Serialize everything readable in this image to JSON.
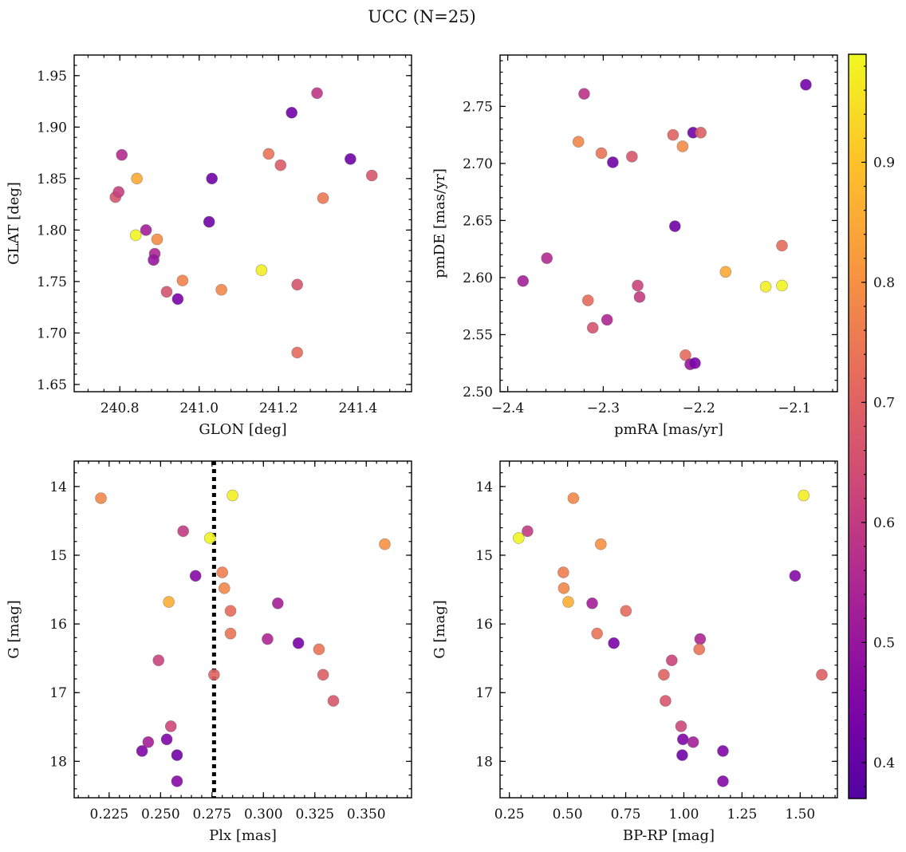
{
  "figure": {
    "title": "UCC (N=25)"
  },
  "colorbar": {
    "range": [
      0.37,
      0.99
    ],
    "ticks": [
      0.4,
      0.5,
      0.6,
      0.7,
      0.8,
      0.9
    ],
    "tick_labels": [
      "0.4",
      "0.5",
      "0.6",
      "0.7",
      "0.8",
      "0.9"
    ],
    "colormap": "plasma"
  },
  "chart_data": [
    {
      "type": "scatter",
      "id": "glon-glat",
      "xlabel": "GLON [deg]",
      "ylabel": "GLAT [deg]",
      "xlim": [
        240.685,
        241.535
      ],
      "ylim": [
        1.643,
        1.97
      ],
      "xticks": [
        240.8,
        241.0,
        241.2,
        241.4
      ],
      "xtick_labels": [
        "240.8",
        "241.0",
        "241.2",
        "241.4"
      ],
      "yticks": [
        1.65,
        1.7,
        1.75,
        1.8,
        1.85,
        1.9,
        1.95
      ],
      "ytick_labels": [
        "1.65",
        "1.70",
        "1.75",
        "1.80",
        "1.85",
        "1.90",
        "1.95"
      ],
      "points": [
        {
          "x": 240.805,
          "y": 1.873,
          "c": 0.56
        },
        {
          "x": 240.789,
          "y": 1.832,
          "c": 0.66
        },
        {
          "x": 240.797,
          "y": 1.837,
          "c": 0.61
        },
        {
          "x": 240.843,
          "y": 1.85,
          "c": 0.85
        },
        {
          "x": 240.84,
          "y": 1.795,
          "c": 0.98
        },
        {
          "x": 240.866,
          "y": 1.8,
          "c": 0.53
        },
        {
          "x": 240.888,
          "y": 1.777,
          "c": 0.55
        },
        {
          "x": 240.885,
          "y": 1.771,
          "c": 0.5
        },
        {
          "x": 240.894,
          "y": 1.791,
          "c": 0.79
        },
        {
          "x": 240.918,
          "y": 1.74,
          "c": 0.66
        },
        {
          "x": 240.946,
          "y": 1.733,
          "c": 0.44
        },
        {
          "x": 240.958,
          "y": 1.751,
          "c": 0.77
        },
        {
          "x": 241.025,
          "y": 1.808,
          "c": 0.42
        },
        {
          "x": 241.032,
          "y": 1.85,
          "c": 0.42
        },
        {
          "x": 241.056,
          "y": 1.742,
          "c": 0.78
        },
        {
          "x": 241.157,
          "y": 1.761,
          "c": 0.97
        },
        {
          "x": 241.175,
          "y": 1.874,
          "c": 0.74
        },
        {
          "x": 241.205,
          "y": 1.863,
          "c": 0.68
        },
        {
          "x": 241.233,
          "y": 1.914,
          "c": 0.42
        },
        {
          "x": 241.247,
          "y": 1.747,
          "c": 0.66
        },
        {
          "x": 241.247,
          "y": 1.681,
          "c": 0.72
        },
        {
          "x": 241.297,
          "y": 1.933,
          "c": 0.59
        },
        {
          "x": 241.312,
          "y": 1.831,
          "c": 0.75
        },
        {
          "x": 241.381,
          "y": 1.869,
          "c": 0.42
        },
        {
          "x": 241.435,
          "y": 1.853,
          "c": 0.67
        }
      ]
    },
    {
      "type": "scatter",
      "id": "pmra-pmde",
      "xlabel": "pmRA [mas/yr]",
      "ylabel": "pmDE [mas/yr]",
      "xlim": [
        -2.408,
        -2.055
      ],
      "ylim": [
        2.5,
        2.795
      ],
      "xticks": [
        -2.4,
        -2.3,
        -2.2,
        -2.1
      ],
      "xtick_labels": [
        "−2.4",
        "−2.3",
        "−2.2",
        "−2.1"
      ],
      "yticks": [
        2.5,
        2.55,
        2.6,
        2.65,
        2.7,
        2.75
      ],
      "ytick_labels": [
        "2.50",
        "2.55",
        "2.60",
        "2.65",
        "2.70",
        "2.75"
      ],
      "points": [
        {
          "x": -2.384,
          "y": 2.597,
          "c": 0.53
        },
        {
          "x": -2.359,
          "y": 2.617,
          "c": 0.56
        },
        {
          "x": -2.326,
          "y": 2.719,
          "c": 0.78
        },
        {
          "x": -2.32,
          "y": 2.761,
          "c": 0.58
        },
        {
          "x": -2.316,
          "y": 2.58,
          "c": 0.72
        },
        {
          "x": -2.311,
          "y": 2.556,
          "c": 0.66
        },
        {
          "x": -2.302,
          "y": 2.709,
          "c": 0.74
        },
        {
          "x": -2.296,
          "y": 2.563,
          "c": 0.55
        },
        {
          "x": -2.29,
          "y": 2.701,
          "c": 0.42
        },
        {
          "x": -2.27,
          "y": 2.706,
          "c": 0.67
        },
        {
          "x": -2.264,
          "y": 2.593,
          "c": 0.62
        },
        {
          "x": -2.262,
          "y": 2.583,
          "c": 0.6
        },
        {
          "x": -2.227,
          "y": 2.725,
          "c": 0.7
        },
        {
          "x": -2.225,
          "y": 2.645,
          "c": 0.42
        },
        {
          "x": -2.217,
          "y": 2.715,
          "c": 0.79
        },
        {
          "x": -2.214,
          "y": 2.532,
          "c": 0.72
        },
        {
          "x": -2.209,
          "y": 2.524,
          "c": 0.5
        },
        {
          "x": -2.206,
          "y": 2.727,
          "c": 0.42
        },
        {
          "x": -2.204,
          "y": 2.525,
          "c": 0.44
        },
        {
          "x": -2.198,
          "y": 2.727,
          "c": 0.69
        },
        {
          "x": -2.172,
          "y": 2.605,
          "c": 0.85
        },
        {
          "x": -2.13,
          "y": 2.592,
          "c": 0.97
        },
        {
          "x": -2.113,
          "y": 2.628,
          "c": 0.72
        },
        {
          "x": -2.113,
          "y": 2.593,
          "c": 0.98
        },
        {
          "x": -2.088,
          "y": 2.769,
          "c": 0.43
        }
      ]
    },
    {
      "type": "scatter",
      "id": "plx-g",
      "xlabel": "Plx [mas]",
      "ylabel": "G [mag]",
      "xlim": [
        0.208,
        0.372
      ],
      "ylim": [
        18.53,
        13.63
      ],
      "y_inverted": true,
      "xticks": [
        0.225,
        0.25,
        0.275,
        0.3,
        0.325,
        0.35
      ],
      "xtick_labels": [
        "0.225",
        "0.250",
        "0.275",
        "0.300",
        "0.325",
        "0.350"
      ],
      "yticks": [
        14,
        15,
        16,
        17,
        18
      ],
      "ytick_labels": [
        "14",
        "15",
        "16",
        "17",
        "18"
      ],
      "vline": 0.276,
      "points": [
        {
          "x": 0.221,
          "y": 14.17,
          "c": 0.78
        },
        {
          "x": 0.285,
          "y": 14.13,
          "c": 0.97
        },
        {
          "x": 0.261,
          "y": 14.65,
          "c": 0.6
        },
        {
          "x": 0.274,
          "y": 14.75,
          "c": 0.98
        },
        {
          "x": 0.359,
          "y": 14.84,
          "c": 0.8
        },
        {
          "x": 0.28,
          "y": 15.25,
          "c": 0.76
        },
        {
          "x": 0.267,
          "y": 15.3,
          "c": 0.46
        },
        {
          "x": 0.281,
          "y": 15.48,
          "c": 0.78
        },
        {
          "x": 0.254,
          "y": 15.68,
          "c": 0.86
        },
        {
          "x": 0.307,
          "y": 15.7,
          "c": 0.53
        },
        {
          "x": 0.284,
          "y": 15.81,
          "c": 0.72
        },
        {
          "x": 0.284,
          "y": 16.14,
          "c": 0.74
        },
        {
          "x": 0.302,
          "y": 16.22,
          "c": 0.55
        },
        {
          "x": 0.317,
          "y": 16.28,
          "c": 0.44
        },
        {
          "x": 0.327,
          "y": 16.37,
          "c": 0.74
        },
        {
          "x": 0.249,
          "y": 16.53,
          "c": 0.62
        },
        {
          "x": 0.276,
          "y": 16.74,
          "c": 0.7
        },
        {
          "x": 0.329,
          "y": 16.74,
          "c": 0.69
        },
        {
          "x": 0.334,
          "y": 17.12,
          "c": 0.67
        },
        {
          "x": 0.255,
          "y": 17.49,
          "c": 0.63
        },
        {
          "x": 0.253,
          "y": 17.68,
          "c": 0.45
        },
        {
          "x": 0.244,
          "y": 17.72,
          "c": 0.53
        },
        {
          "x": 0.241,
          "y": 17.85,
          "c": 0.45
        },
        {
          "x": 0.258,
          "y": 17.91,
          "c": 0.42
        },
        {
          "x": 0.258,
          "y": 18.29,
          "c": 0.46
        }
      ]
    },
    {
      "type": "scatter",
      "id": "bprp-g",
      "xlabel": "BP-RP [mag]",
      "ylabel": "G [mag]",
      "xlim": [
        0.21,
        1.66
      ],
      "ylim": [
        18.53,
        13.63
      ],
      "y_inverted": true,
      "xticks": [
        0.25,
        0.5,
        0.75,
        1.0,
        1.25,
        1.5
      ],
      "xtick_labels": [
        "0.25",
        "0.50",
        "0.75",
        "1.00",
        "1.25",
        "1.50"
      ],
      "yticks": [
        14,
        15,
        16,
        17,
        18
      ],
      "ytick_labels": [
        "14",
        "15",
        "16",
        "17",
        "18"
      ],
      "points": [
        {
          "x": 0.525,
          "y": 14.17,
          "c": 0.78
        },
        {
          "x": 1.515,
          "y": 14.13,
          "c": 0.97
        },
        {
          "x": 0.328,
          "y": 14.65,
          "c": 0.6
        },
        {
          "x": 0.29,
          "y": 14.75,
          "c": 0.98
        },
        {
          "x": 0.643,
          "y": 14.84,
          "c": 0.8
        },
        {
          "x": 0.482,
          "y": 15.25,
          "c": 0.76
        },
        {
          "x": 1.478,
          "y": 15.3,
          "c": 0.46
        },
        {
          "x": 0.484,
          "y": 15.48,
          "c": 0.78
        },
        {
          "x": 0.503,
          "y": 15.68,
          "c": 0.86
        },
        {
          "x": 0.606,
          "y": 15.7,
          "c": 0.53
        },
        {
          "x": 0.751,
          "y": 15.81,
          "c": 0.72
        },
        {
          "x": 0.627,
          "y": 16.14,
          "c": 0.74
        },
        {
          "x": 1.07,
          "y": 16.22,
          "c": 0.55
        },
        {
          "x": 0.699,
          "y": 16.28,
          "c": 0.44
        },
        {
          "x": 1.066,
          "y": 16.37,
          "c": 0.74
        },
        {
          "x": 0.948,
          "y": 16.53,
          "c": 0.62
        },
        {
          "x": 0.914,
          "y": 16.74,
          "c": 0.7
        },
        {
          "x": 1.593,
          "y": 16.74,
          "c": 0.69
        },
        {
          "x": 0.921,
          "y": 17.12,
          "c": 0.67
        },
        {
          "x": 0.988,
          "y": 17.49,
          "c": 0.63
        },
        {
          "x": 0.996,
          "y": 17.68,
          "c": 0.45
        },
        {
          "x": 1.04,
          "y": 17.72,
          "c": 0.53
        },
        {
          "x": 1.168,
          "y": 17.85,
          "c": 0.45
        },
        {
          "x": 0.993,
          "y": 17.91,
          "c": 0.42
        },
        {
          "x": 1.168,
          "y": 18.29,
          "c": 0.46
        }
      ]
    }
  ]
}
